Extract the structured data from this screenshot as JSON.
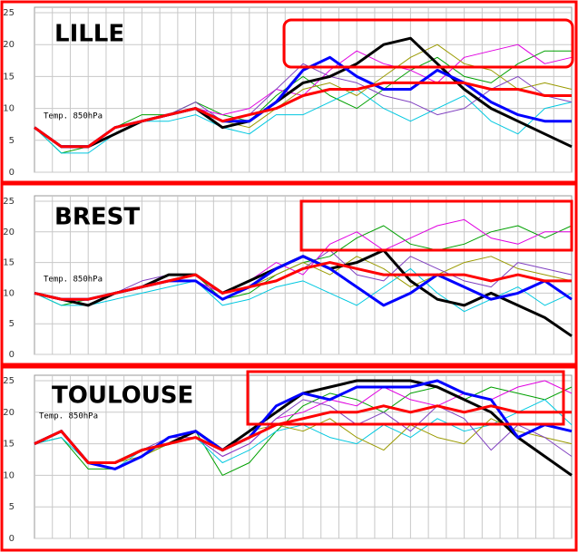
{
  "chart_data": [
    {
      "type": "line",
      "title": "LILLE",
      "annotation": "Temp. 850hPa",
      "ylim": [
        0,
        25
      ],
      "yticks": [
        0,
        5,
        10,
        15,
        20,
        25
      ],
      "grid": true,
      "series": [
        {
          "color": "#00a000",
          "values": [
            7,
            3,
            4,
            7,
            9,
            9,
            11,
            9,
            8,
            12,
            15,
            12,
            10,
            13,
            16,
            18,
            15,
            14,
            17,
            19,
            19
          ]
        },
        {
          "color": "#e000e0",
          "values": [
            7,
            4,
            4,
            7,
            8,
            9,
            10,
            9,
            10,
            13,
            12,
            16,
            19,
            17,
            16,
            14,
            18,
            19,
            20,
            17,
            18
          ]
        },
        {
          "color": "#00c8e0",
          "values": [
            7,
            3,
            3,
            6,
            8,
            8,
            9,
            7,
            6,
            9,
            9,
            11,
            13,
            10,
            8,
            10,
            12,
            8,
            6,
            10,
            11
          ]
        },
        {
          "color": "#9a9a00",
          "values": [
            7,
            4,
            4,
            7,
            8,
            9,
            10,
            8,
            7,
            10,
            13,
            14,
            12,
            15,
            18,
            20,
            17,
            16,
            13,
            14,
            13
          ]
        },
        {
          "color": "#8040c0",
          "values": [
            7,
            4,
            4,
            7,
            8,
            9,
            11,
            8,
            9,
            13,
            17,
            15,
            14,
            12,
            11,
            9,
            10,
            13,
            15,
            12,
            11
          ]
        },
        {
          "color": "#000000",
          "width": 3,
          "values": [
            7,
            4,
            4,
            6,
            8,
            9,
            10,
            7,
            8,
            11,
            14,
            15,
            17,
            20,
            21,
            17,
            13,
            10,
            8,
            6,
            4
          ]
        },
        {
          "color": "#0000ff",
          "width": 3,
          "values": [
            7,
            4,
            4,
            7,
            8,
            9,
            10,
            8,
            8,
            11,
            16,
            18,
            15,
            13,
            13,
            16,
            14,
            11,
            9,
            8,
            8
          ]
        },
        {
          "color": "#ff0000",
          "width": 3,
          "values": [
            7,
            4,
            4,
            7,
            8,
            9,
            10,
            8,
            9,
            10,
            12,
            13,
            13,
            14,
            14,
            14,
            14,
            13,
            13,
            12,
            12
          ]
        }
      ]
    },
    {
      "type": "line",
      "title": "BREST",
      "annotation": "Temp. 850hPa",
      "ylim": [
        0,
        25
      ],
      "yticks": [
        0,
        5,
        10,
        15,
        20,
        25
      ],
      "grid": true,
      "series": [
        {
          "color": "#00a000",
          "values": [
            10,
            8,
            9,
            10,
            11,
            12,
            13,
            9,
            10,
            13,
            15,
            16,
            19,
            21,
            18,
            17,
            18,
            20,
            21,
            19,
            21
          ]
        },
        {
          "color": "#e000e0",
          "values": [
            10,
            9,
            9,
            10,
            11,
            12,
            12,
            10,
            12,
            15,
            13,
            18,
            20,
            17,
            19,
            21,
            22,
            19,
            18,
            20,
            20
          ]
        },
        {
          "color": "#00c8e0",
          "values": [
            10,
            8,
            8,
            9,
            10,
            11,
            12,
            8,
            9,
            11,
            12,
            10,
            8,
            11,
            14,
            10,
            7,
            9,
            11,
            8,
            10
          ]
        },
        {
          "color": "#9a9a00",
          "values": [
            10,
            9,
            9,
            10,
            11,
            12,
            13,
            10,
            11,
            13,
            15,
            13,
            16,
            14,
            11,
            13,
            15,
            16,
            14,
            13,
            12
          ]
        },
        {
          "color": "#8040c0",
          "values": [
            10,
            9,
            9,
            10,
            12,
            13,
            13,
            10,
            11,
            12,
            14,
            17,
            13,
            12,
            16,
            14,
            12,
            11,
            15,
            14,
            13
          ]
        },
        {
          "color": "#000000",
          "width": 3,
          "values": [
            10,
            9,
            8,
            10,
            11,
            13,
            13,
            10,
            12,
            14,
            16,
            14,
            15,
            17,
            12,
            9,
            8,
            10,
            8,
            6,
            3
          ]
        },
        {
          "color": "#0000ff",
          "width": 3,
          "values": [
            10,
            9,
            9,
            10,
            11,
            12,
            12,
            9,
            11,
            14,
            16,
            14,
            11,
            8,
            10,
            13,
            11,
            9,
            10,
            12,
            9
          ]
        },
        {
          "color": "#ff0000",
          "width": 3,
          "values": [
            10,
            9,
            9,
            10,
            11,
            12,
            13,
            10,
            11,
            12,
            14,
            15,
            14,
            13,
            13,
            13,
            13,
            12,
            13,
            12,
            12
          ]
        }
      ]
    },
    {
      "type": "line",
      "title": "TOULOUSE",
      "annotation": "Temp. 850hPa",
      "ylim": [
        0,
        25
      ],
      "yticks": [
        0,
        5,
        10,
        15,
        20,
        25
      ],
      "grid": true,
      "series": [
        {
          "color": "#00a000",
          "values": [
            15,
            16,
            11,
            11,
            13,
            15,
            17,
            10,
            12,
            17,
            21,
            23,
            22,
            20,
            23,
            24,
            22,
            24,
            23,
            22,
            24
          ]
        },
        {
          "color": "#e000e0",
          "values": [
            15,
            17,
            12,
            12,
            14,
            15,
            16,
            13,
            15,
            19,
            20,
            22,
            21,
            24,
            22,
            21,
            23,
            22,
            24,
            25,
            23
          ]
        },
        {
          "color": "#00c8e0",
          "values": [
            15,
            16,
            12,
            11,
            14,
            15,
            16,
            12,
            14,
            17,
            18,
            16,
            15,
            18,
            16,
            19,
            17,
            18,
            20,
            22,
            18
          ]
        },
        {
          "color": "#9a9a00",
          "values": [
            15,
            17,
            12,
            12,
            13,
            15,
            17,
            14,
            17,
            18,
            17,
            19,
            16,
            14,
            18,
            16,
            15,
            19,
            17,
            16,
            15
          ]
        },
        {
          "color": "#8040c0",
          "values": [
            15,
            17,
            12,
            12,
            14,
            16,
            16,
            13,
            15,
            19,
            22,
            21,
            18,
            20,
            17,
            21,
            19,
            14,
            18,
            16,
            13
          ]
        },
        {
          "color": "#000000",
          "width": 3,
          "values": [
            15,
            17,
            12,
            12,
            14,
            15,
            17,
            14,
            17,
            20,
            23,
            24,
            25,
            25,
            25,
            24,
            22,
            20,
            16,
            13,
            10
          ]
        },
        {
          "color": "#0000ff",
          "width": 3,
          "values": [
            15,
            17,
            12,
            11,
            13,
            16,
            17,
            14,
            16,
            21,
            23,
            22,
            24,
            24,
            24,
            25,
            23,
            22,
            16,
            18,
            17
          ]
        },
        {
          "color": "#ff0000",
          "width": 3,
          "values": [
            15,
            17,
            12,
            12,
            14,
            15,
            16,
            14,
            16,
            18,
            19,
            20,
            20,
            21,
            20,
            21,
            20,
            21,
            20,
            20,
            20
          ]
        }
      ]
    }
  ]
}
